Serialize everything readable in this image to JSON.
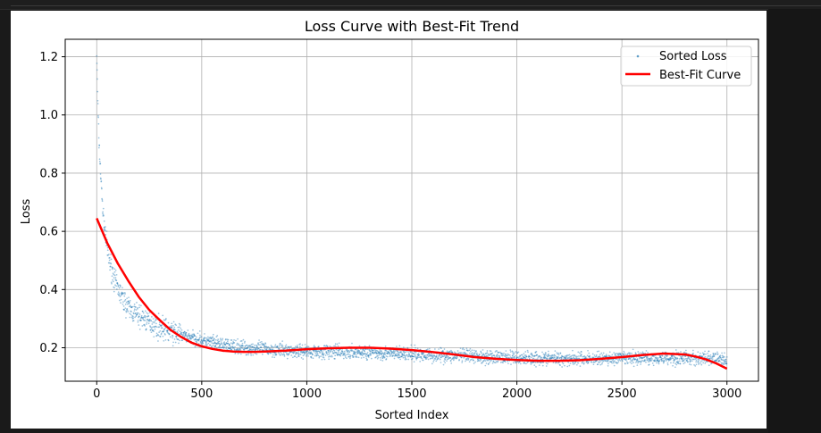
{
  "chart_data": {
    "type": "scatter",
    "title": "Loss Curve with Best-Fit Trend",
    "xlabel": "Sorted Index",
    "ylabel": "Loss",
    "xlim": [
      -150,
      3150
    ],
    "ylim": [
      0.085,
      1.26
    ],
    "xticks": [
      0,
      500,
      1000,
      1500,
      2000,
      2500,
      3000
    ],
    "yticks": [
      0.2,
      0.4,
      0.6,
      0.8,
      1.0,
      1.2
    ],
    "xtick_labels": [
      "0",
      "500",
      "1000",
      "1500",
      "2000",
      "2500",
      "3000"
    ],
    "ytick_labels": [
      "0.2",
      "0.4",
      "0.6",
      "0.8",
      "1.0",
      "1.2"
    ],
    "grid": true,
    "legend_position": "top-right",
    "series": [
      {
        "name": "Sorted Loss",
        "kind": "scatter",
        "color": "#1f77b4",
        "points_approx": [
          [
            0,
            1.21
          ],
          [
            5,
            1.05
          ],
          [
            10,
            0.92
          ],
          [
            15,
            0.85
          ],
          [
            20,
            0.78
          ],
          [
            25,
            0.72
          ],
          [
            30,
            0.66
          ],
          [
            40,
            0.6
          ],
          [
            50,
            0.54
          ],
          [
            60,
            0.5
          ],
          [
            75,
            0.46
          ],
          [
            90,
            0.42
          ],
          [
            110,
            0.39
          ],
          [
            130,
            0.36
          ],
          [
            160,
            0.33
          ],
          [
            200,
            0.31
          ],
          [
            250,
            0.29
          ],
          [
            300,
            0.27
          ],
          [
            350,
            0.255
          ],
          [
            400,
            0.245
          ],
          [
            450,
            0.235
          ],
          [
            500,
            0.225
          ],
          [
            600,
            0.21
          ],
          [
            700,
            0.2
          ],
          [
            800,
            0.195
          ],
          [
            900,
            0.19
          ],
          [
            1000,
            0.188
          ],
          [
            1200,
            0.185
          ],
          [
            1400,
            0.18
          ],
          [
            1600,
            0.175
          ],
          [
            1800,
            0.17
          ],
          [
            2000,
            0.165
          ],
          [
            2200,
            0.163
          ],
          [
            2400,
            0.162
          ],
          [
            2600,
            0.165
          ],
          [
            2800,
            0.165
          ],
          [
            3000,
            0.16
          ]
        ]
      },
      {
        "name": "Best-Fit Curve",
        "kind": "line",
        "color": "#ff0000",
        "x": [
          0,
          50,
          100,
          150,
          200,
          250,
          300,
          350,
          400,
          450,
          500,
          550,
          600,
          650,
          700,
          750,
          800,
          900,
          1000,
          1100,
          1200,
          1300,
          1400,
          1500,
          1600,
          1700,
          1800,
          1900,
          2000,
          2100,
          2200,
          2300,
          2400,
          2500,
          2600,
          2700,
          2800,
          2850,
          2900,
          2950,
          3000
        ],
        "y": [
          0.645,
          0.56,
          0.49,
          0.43,
          0.375,
          0.33,
          0.295,
          0.262,
          0.238,
          0.218,
          0.205,
          0.196,
          0.19,
          0.187,
          0.186,
          0.186,
          0.187,
          0.19,
          0.195,
          0.198,
          0.2,
          0.2,
          0.197,
          0.192,
          0.185,
          0.177,
          0.168,
          0.162,
          0.158,
          0.155,
          0.155,
          0.157,
          0.162,
          0.168,
          0.175,
          0.18,
          0.177,
          0.17,
          0.16,
          0.146,
          0.128
        ]
      }
    ]
  }
}
